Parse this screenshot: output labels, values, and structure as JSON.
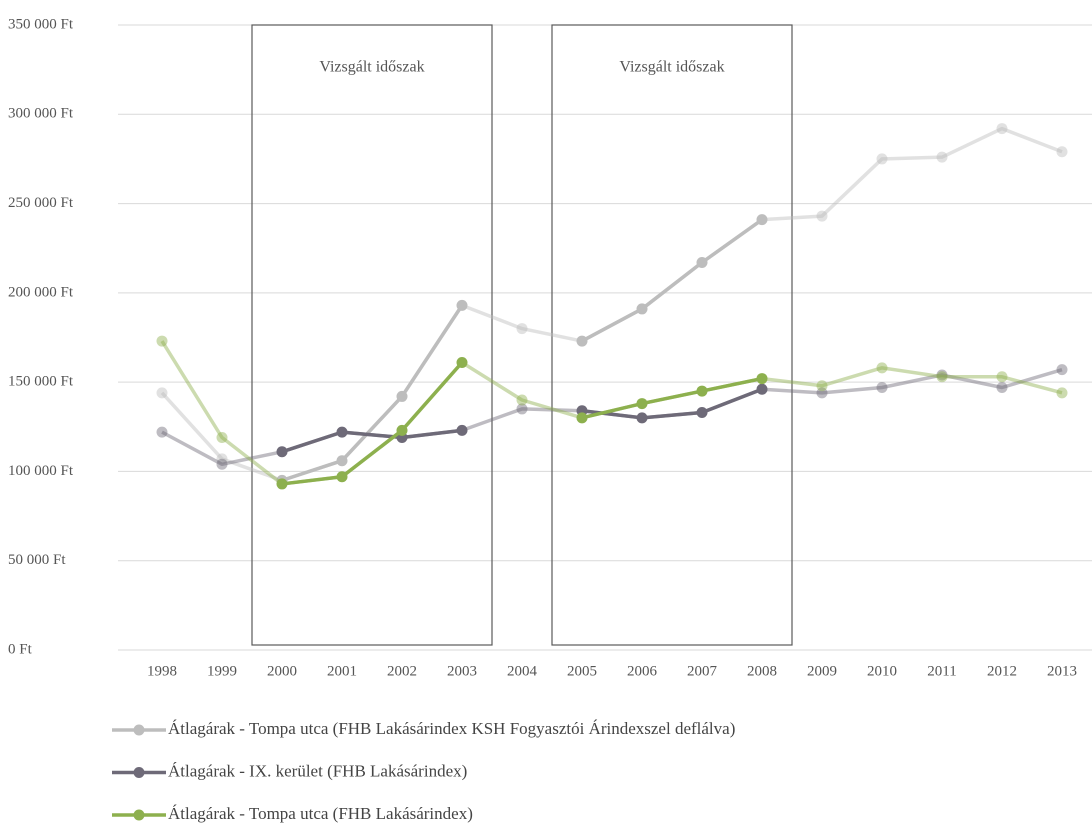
{
  "chart_data": {
    "type": "line",
    "categories": [
      "1998",
      "1999",
      "2000",
      "2001",
      "2002",
      "2003",
      "2004",
      "2005",
      "2006",
      "2007",
      "2008",
      "2009",
      "2010",
      "2011",
      "2012",
      "2013"
    ],
    "series": [
      {
        "name": "Átlagárak - Tompa utca (FHB Lakásárindex KSH Fogyasztói Árindexszel deflálva)",
        "color": "#bdbdbd",
        "values": [
          144000,
          107000,
          95000,
          106000,
          142000,
          193000,
          180000,
          173000,
          191000,
          217000,
          241000,
          243000,
          275000,
          276000,
          292000,
          279000
        ]
      },
      {
        "name": "Átlagárak - IX. kerület (FHB Lakásárindex)",
        "color": "#6e6a78",
        "values": [
          122000,
          104000,
          111000,
          122000,
          119000,
          123000,
          135000,
          134000,
          130000,
          133000,
          146000,
          144000,
          147000,
          154000,
          147000,
          157000
        ]
      },
      {
        "name": "Átlagárak - Tompa utca (FHB Lakásárindex)",
        "color": "#8db04e",
        "values": [
          173000,
          119000,
          93000,
          97000,
          123000,
          161000,
          140000,
          130000,
          138000,
          145000,
          152000,
          148000,
          158000,
          153000,
          153000,
          144000
        ]
      }
    ],
    "periods": [
      {
        "label": "Vizsgált időszak",
        "start": "2000",
        "end": "2003"
      },
      {
        "label": "Vizsgált időszak",
        "start": "2005",
        "end": "2008"
      }
    ],
    "ylim": [
      0,
      350000
    ],
    "yticks": [
      {
        "value": 0,
        "label": "0 Ft"
      },
      {
        "value": 50000,
        "label": "50 000 Ft"
      },
      {
        "value": 100000,
        "label": "100 000 Ft"
      },
      {
        "value": 150000,
        "label": "150 000 Ft"
      },
      {
        "value": 200000,
        "label": "200 000 Ft"
      },
      {
        "value": 250000,
        "label": "250 000 Ft"
      },
      {
        "value": 300000,
        "label": "300 000 Ft"
      },
      {
        "value": 350000,
        "label": "350 000 Ft"
      }
    ],
    "grid": true,
    "legend": "bottom"
  }
}
